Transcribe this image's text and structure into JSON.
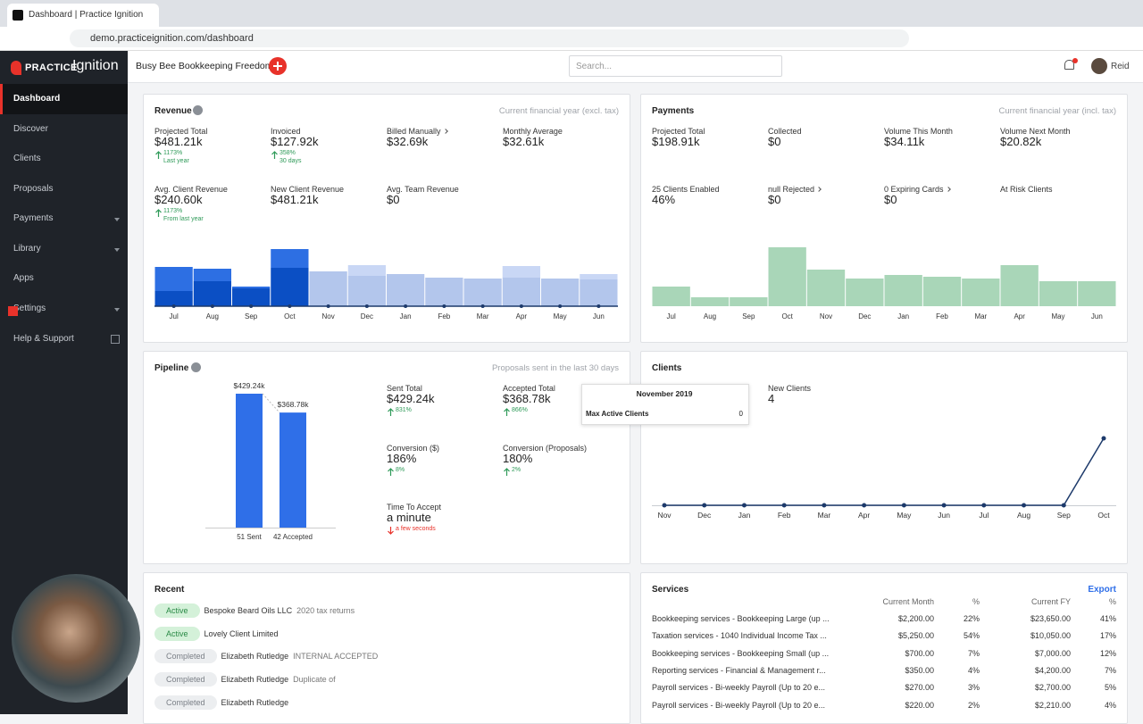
{
  "browser": {
    "tab_title": "Dashboard | Practice Ignition",
    "url": "demo.practiceignition.com/dashboard"
  },
  "sidebar": {
    "logo_prefix": "PRACTICE",
    "logo_name": "Ignition",
    "nav": [
      {
        "label": "Dashboard",
        "active": true
      },
      {
        "label": "Discover"
      },
      {
        "label": "Clients"
      },
      {
        "label": "Proposals"
      },
      {
        "label": "Payments",
        "submenu": true
      },
      {
        "label": "Library",
        "submenu": true
      },
      {
        "label": "Apps"
      },
      {
        "label": "Settings",
        "submenu": true
      },
      {
        "label": "Help & Support",
        "external": true
      }
    ]
  },
  "header": {
    "company": "Busy Bee Bookkeeping Freedom",
    "search_placeholder": "Search...",
    "user": "Reid"
  },
  "revenue": {
    "title": "Revenue",
    "period": "Current financial year (excl. tax)",
    "stats": [
      {
        "label": "Projected Total",
        "value": "$481.21k",
        "change": "1173%",
        "note": "Last year"
      },
      {
        "label": "Invoiced",
        "value": "$127.92k",
        "change": "358%",
        "note": "30 days"
      },
      {
        "label": "Billed Manually",
        "value": "$32.69k",
        "link": true
      },
      {
        "label": "Monthly Average",
        "value": "$32.61k"
      },
      {
        "label": "Avg. Client Revenue",
        "value": "$240.60k",
        "change": "1173%",
        "note": "From last year"
      },
      {
        "label": "New Client Revenue",
        "value": "$481.21k"
      },
      {
        "label": "Avg. Team Revenue",
        "value": "$0"
      }
    ],
    "chart": {
      "type": "bar",
      "categories": [
        "Jul",
        "Aug",
        "Sep",
        "Oct",
        "Nov",
        "Dec",
        "Jan",
        "Feb",
        "Mar",
        "Apr",
        "May",
        "Jun"
      ],
      "series": [
        {
          "values": [
            17,
            28,
            20,
            43,
            39,
            34,
            36,
            32,
            31,
            32,
            31,
            30
          ],
          "colors": [
            "#0b4fc4",
            "#0b4fc4",
            "#0b4fc4",
            "#0b4fc4",
            "#b3c6ec",
            "#b3c6ec",
            "#b3c6ec",
            "#b3c6ec",
            "#b3c6ec",
            "#b3c6ec",
            "#b3c6ec",
            "#b3c6ec"
          ]
        },
        {
          "values": [
            27,
            14,
            2,
            21,
            0,
            12,
            0,
            0,
            0,
            13,
            0,
            6
          ],
          "colors": [
            "#2d6fe3",
            "#2d6fe3",
            "#2d6fe3",
            "#2d6fe3",
            "#c9d7f5",
            "#c9d7f5",
            "#c9d7f5",
            "#c9d7f5",
            "#c9d7f5",
            "#c9d7f5",
            "#c9d7f5",
            "#c9d7f5"
          ]
        }
      ]
    }
  },
  "payments": {
    "title": "Payments",
    "period": "Current financial year (incl. tax)",
    "stats": [
      {
        "label": "Projected Total",
        "value": "$198.91k"
      },
      {
        "label": "Collected",
        "value": "$0"
      },
      {
        "label": "Volume This Month",
        "value": "$34.11k"
      },
      {
        "label": "Volume Next Month",
        "value": "$20.82k"
      },
      {
        "label": "25 Clients Enabled",
        "value": "46%"
      },
      {
        "label": "null Rejected",
        "value": "$0",
        "link": true
      },
      {
        "label": "0 Expiring Cards",
        "value": "$0",
        "link": true
      },
      {
        "label": "At Risk Clients"
      }
    ],
    "chart": {
      "type": "bar",
      "categories": [
        "Jul",
        "Aug",
        "Sep",
        "Oct",
        "Nov",
        "Dec",
        "Jan",
        "Feb",
        "Mar",
        "Apr",
        "May",
        "Jun"
      ],
      "values": [
        22,
        10,
        10,
        66,
        41,
        31,
        35,
        33,
        31,
        46,
        28,
        28
      ],
      "color": "#a9d6b8"
    }
  },
  "pipeline": {
    "title": "Pipeline",
    "period": "Proposals sent in the last 30 days",
    "chart": {
      "type": "bar",
      "categories": [
        "51 Sent",
        "42 Accepted"
      ],
      "values": [
        429.24,
        368.78
      ],
      "value_labels": [
        "$429.24k",
        "$368.78k"
      ],
      "color": "#2f6fe8"
    },
    "stats": [
      {
        "label": "Sent Total",
        "value": "$429.24k",
        "change": "831%"
      },
      {
        "label": "Accepted Total",
        "value": "$368.78k",
        "change": "866%"
      },
      {
        "label": "Conversion ($)",
        "value": "186%",
        "change": "8%"
      },
      {
        "label": "Conversion (Proposals)",
        "value": "180%",
        "change": "2%"
      },
      {
        "label": "Time To Accept",
        "value": "a minute",
        "change": "a few seconds",
        "down": true
      }
    ]
  },
  "clients": {
    "title": "Clients",
    "stats": [
      {
        "label": "New Clients",
        "value": "4"
      }
    ],
    "tooltip": {
      "title": "November 2019",
      "label": "Max Active Clients"
    },
    "chart": {
      "type": "line",
      "categories": [
        "Nov",
        "Dec",
        "Jan",
        "Feb",
        "Mar",
        "Apr",
        "May",
        "Jun",
        "Jul",
        "Aug",
        "Sep",
        "Oct"
      ],
      "values": [
        0,
        0,
        0,
        0,
        0,
        0,
        0,
        0,
        0,
        0,
        0,
        4
      ],
      "color": "#1d3a6b"
    }
  },
  "recent": {
    "title": "Recent",
    "rows": [
      {
        "status": "Active",
        "client": "Bespoke Beard Oils LLC",
        "note": "2020 tax returns"
      },
      {
        "status": "Active",
        "client": "Lovely Client Limited"
      },
      {
        "status": "Completed",
        "client": "Elizabeth Rutledge",
        "note": "INTERNAL ACCEPTED"
      },
      {
        "status": "Completed",
        "client": "Elizabeth Rutledge",
        "note": "Duplicate of"
      },
      {
        "status": "Completed",
        "client": "Elizabeth Rutledge"
      }
    ]
  },
  "services": {
    "title": "Services",
    "export": "Export",
    "columns": [
      "Current Month",
      "%",
      "Current FY",
      "%"
    ],
    "rows": [
      [
        "Bookkeeping services - Bookkeeping Large (up ...",
        "$2,200.00",
        "22%",
        "$23,650.00",
        "41%"
      ],
      [
        "Taxation services - 1040 Individual Income Tax ...",
        "$5,250.00",
        "54%",
        "$10,050.00",
        "17%"
      ],
      [
        "Bookkeeping services - Bookkeeping Small (up ...",
        "$700.00",
        "7%",
        "$7,000.00",
        "12%"
      ],
      [
        "Reporting services - Financial & Management r...",
        "$350.00",
        "4%",
        "$4,200.00",
        "7%"
      ],
      [
        "Payroll services - Bi-weekly Payroll (Up to 20 e...",
        "$270.00",
        "3%",
        "$2,700.00",
        "5%"
      ],
      [
        "Payroll services - Bi-weekly Payroll (Up to 20 e...",
        "$220.00",
        "2%",
        "$2,210.00",
        "4%"
      ]
    ]
  }
}
